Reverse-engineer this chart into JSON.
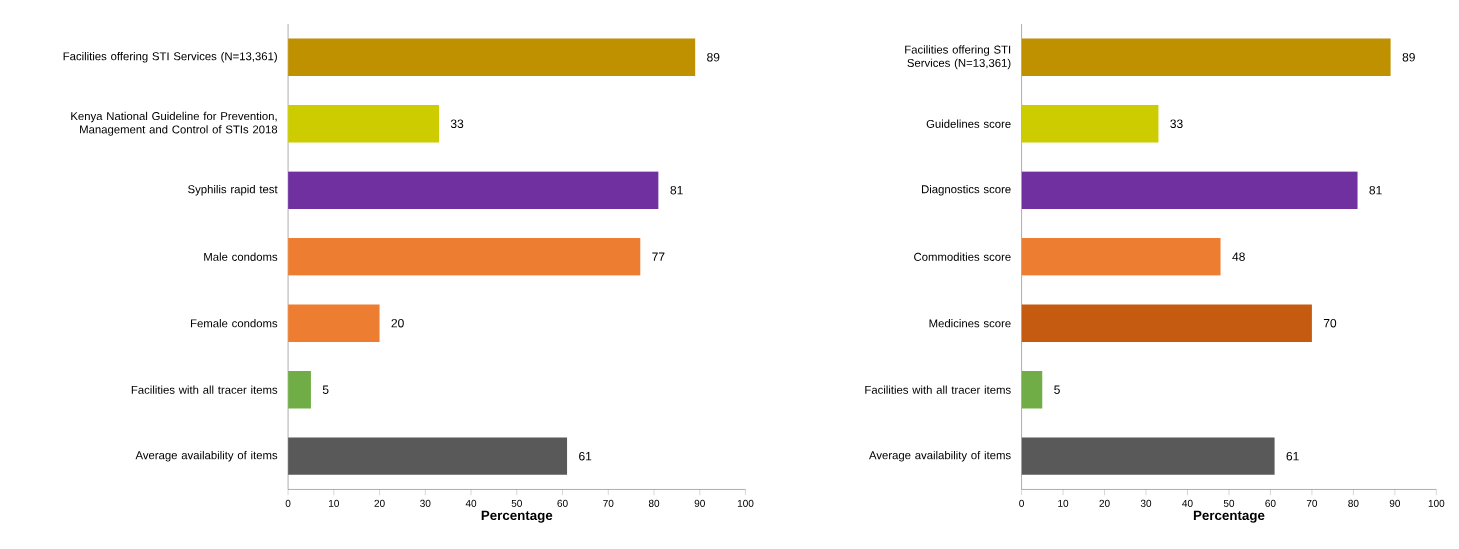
{
  "chart_data": [
    {
      "type": "bar",
      "orientation": "horizontal",
      "xlabel": "Percentage",
      "categories": [
        "Facilities offering STI Services (N=13,361)",
        "Kenya National Guideline for Prevention, Management and Control of STIs 2018",
        "Syphilis rapid test",
        "Male condoms",
        "Female condoms",
        "Facilities with all tracer items",
        "Average availability of items"
      ],
      "values": [
        89,
        33,
        81,
        77,
        20,
        5,
        61
      ],
      "colors": [
        "#bf9000",
        "#cccc00",
        "#7030a0",
        "#ed7d31",
        "#ed7d31",
        "#70ad47",
        "#595959"
      ],
      "xlim": [
        0,
        100
      ],
      "xticks": [
        0,
        10,
        20,
        30,
        40,
        50,
        60,
        70,
        80,
        90,
        100
      ],
      "data_labels": true,
      "grid": false
    },
    {
      "type": "bar",
      "orientation": "horizontal",
      "xlabel": "Percentage",
      "categories": [
        "Facilities offering STI Services (N=13,361)",
        "Guidelines score",
        "Diagnostics score",
        "Commodities score",
        "Medicines score",
        "Facilities with all tracer items",
        "Average availability of items"
      ],
      "values": [
        89,
        33,
        81,
        48,
        70,
        5,
        61
      ],
      "colors": [
        "#bf9000",
        "#cccc00",
        "#7030a0",
        "#ed7d31",
        "#c55a11",
        "#70ad47",
        "#595959"
      ],
      "xlim": [
        0,
        100
      ],
      "xticks": [
        0,
        10,
        20,
        30,
        40,
        50,
        60,
        70,
        80,
        90,
        100
      ],
      "data_labels": true,
      "grid": false
    }
  ]
}
